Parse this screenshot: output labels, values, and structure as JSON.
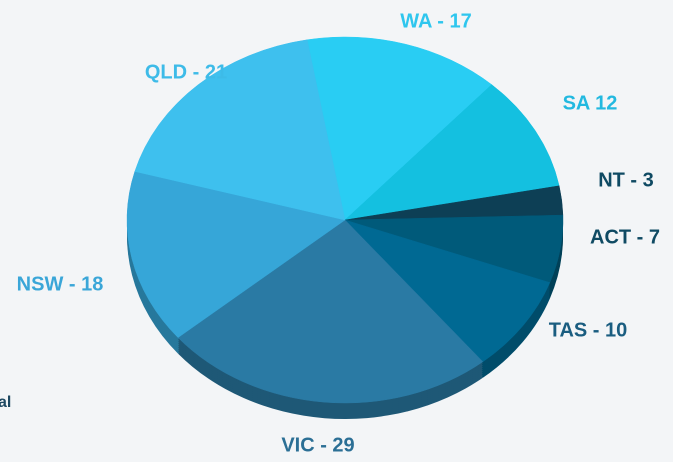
{
  "chart_data": {
    "type": "pie",
    "values": [
      17,
      12,
      3,
      7,
      10,
      29,
      18,
      21
    ],
    "value_labels": [
      "WA - 17",
      "SA 12",
      "NT - 3",
      "ACT - 7",
      "TAS - 10",
      "VIC - 29",
      "NSW - 18",
      "QLD - 21"
    ],
    "colors": [
      "#29cdf3",
      "#14c0e0",
      "#0d3f55",
      "#005a7a",
      "#006993",
      "#2a7aa4",
      "#36a6d8",
      "#3ec0ee"
    ],
    "label_colors": [
      "#2ec6ee",
      "#22b9e0",
      "#0f4a63",
      "#0f4a63",
      "#1a5d80",
      "#2b6f95",
      "#3aa6d8",
      "#3dbbe8"
    ],
    "annotation": "al"
  }
}
